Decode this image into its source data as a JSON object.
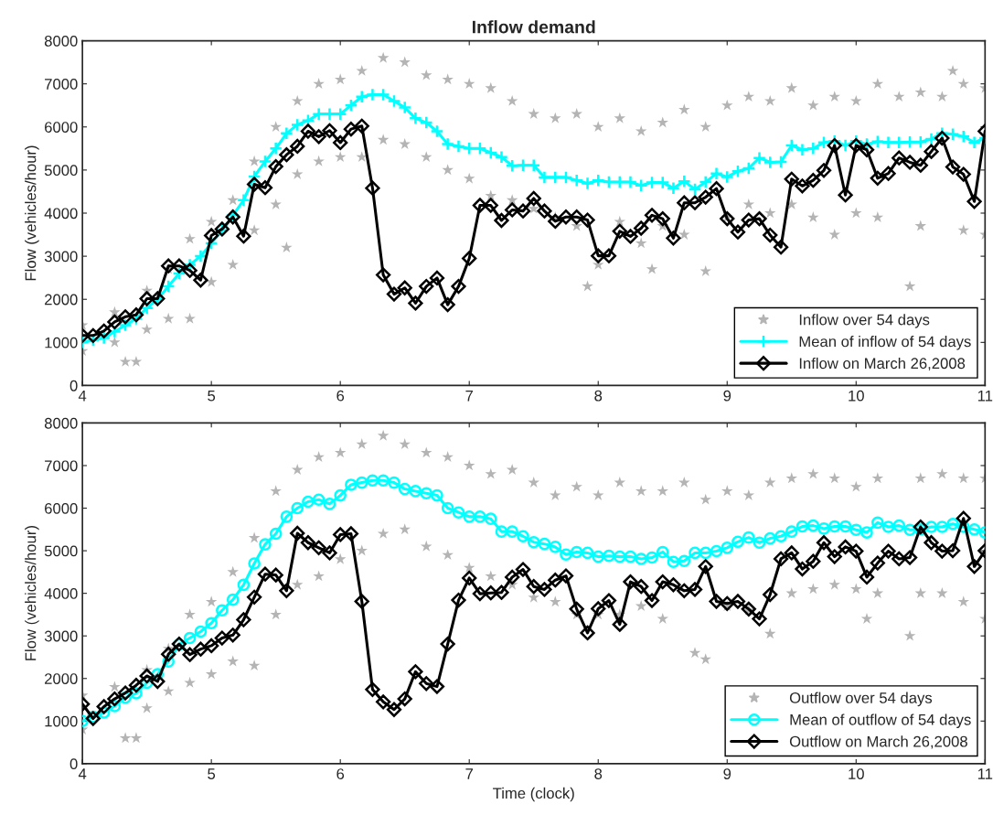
{
  "chart_data": [
    {
      "type": "line",
      "title": "Inflow demand",
      "ylabel": "Flow (vehicles/hour)",
      "xlim": [
        4,
        11
      ],
      "ylim": [
        0,
        8000
      ],
      "xticks": [
        4,
        5,
        6,
        7,
        8,
        9,
        10,
        11
      ],
      "yticks": [
        0,
        1000,
        2000,
        3000,
        4000,
        5000,
        6000,
        7000,
        8000
      ],
      "legend": "bottom right",
      "grid": false,
      "x": [
        4,
        4.083,
        4.167,
        4.25,
        4.333,
        4.417,
        4.5,
        4.583,
        4.667,
        4.75,
        4.833,
        4.917,
        5,
        5.083,
        5.167,
        5.25,
        5.333,
        5.417,
        5.5,
        5.583,
        5.667,
        5.75,
        5.833,
        5.917,
        6,
        6.083,
        6.167,
        6.25,
        6.333,
        6.417,
        6.5,
        6.583,
        6.667,
        6.75,
        6.833,
        6.917,
        7,
        7.083,
        7.167,
        7.25,
        7.333,
        7.417,
        7.5,
        7.583,
        7.667,
        7.75,
        7.833,
        7.917,
        8,
        8.083,
        8.167,
        8.25,
        8.333,
        8.417,
        8.5,
        8.583,
        8.667,
        8.75,
        8.833,
        8.917,
        9,
        9.083,
        9.167,
        9.25,
        9.333,
        9.417,
        9.5,
        9.583,
        9.667,
        9.75,
        9.833,
        9.917,
        10,
        10.083,
        10.167,
        10.25,
        10.333,
        10.417,
        10.5,
        10.583,
        10.667,
        10.75,
        10.833,
        10.917,
        11
      ],
      "series": [
        {
          "name": "Inflow over 54 days",
          "type": "scatter",
          "marker": "star",
          "color": "#b4b4b4",
          "x": [
            4,
            4,
            4.25,
            4.25,
            4.333,
            4.417,
            4.5,
            4.5,
            4.667,
            4.667,
            4.833,
            4.833,
            5,
            5,
            5.167,
            5.167,
            5.333,
            5.333,
            5.5,
            5.5,
            5.583,
            5.667,
            5.667,
            5.833,
            5.833,
            6,
            6,
            6.167,
            6.167,
            6.333,
            6.333,
            6.5,
            6.5,
            6.667,
            6.667,
            6.833,
            6.833,
            7,
            7,
            7.167,
            7.167,
            7.333,
            7.333,
            7.5,
            7.5,
            7.667,
            7.667,
            7.833,
            7.833,
            7.917,
            8,
            8,
            8.167,
            8.167,
            8.333,
            8.333,
            8.417,
            8.5,
            8.5,
            8.667,
            8.667,
            8.833,
            8.833,
            9,
            9,
            9.167,
            9.167,
            9.333,
            9.333,
            9.5,
            9.5,
            9.667,
            9.667,
            9.833,
            9.833,
            10,
            10,
            10.167,
            10.167,
            10.333,
            10.417,
            10.5,
            10.5,
            10.667,
            10.75,
            10.833,
            10.833,
            11,
            11
          ],
          "values": [
            1400,
            800,
            1700,
            1000,
            550,
            550,
            2200,
            1300,
            2700,
            1550,
            3400,
            1550,
            3800,
            2400,
            4300,
            2800,
            5200,
            3600,
            6000,
            4200,
            3200,
            6600,
            4900,
            7000,
            5200,
            7100,
            5300,
            7300,
            5300,
            7600,
            5700,
            7500,
            5600,
            7200,
            5300,
            7100,
            5000,
            7000,
            4800,
            6900,
            4400,
            6600,
            4300,
            6300,
            4100,
            6200,
            3900,
            6300,
            3700,
            2300,
            6000,
            2800,
            6200,
            3800,
            5900,
            3300,
            2700,
            6100,
            3700,
            6400,
            3500,
            6000,
            2650,
            6500,
            3900,
            6700,
            4200,
            6600,
            4000,
            6900,
            4200,
            6500,
            3900,
            6700,
            3500,
            6600,
            4000,
            7000,
            3900,
            6700,
            2300,
            6800,
            3700,
            6700,
            7300,
            7000,
            3600,
            6900,
            3500
          ]
        },
        {
          "name": "Mean of inflow of 54 days",
          "marker": "cross",
          "color": "#00ffff",
          "values": [
            1000,
            1050,
            1100,
            1250,
            1400,
            1550,
            1800,
            2000,
            2300,
            2600,
            2800,
            3000,
            3300,
            3600,
            3950,
            4300,
            4850,
            5200,
            5500,
            5850,
            6050,
            6150,
            6300,
            6300,
            6300,
            6500,
            6700,
            6750,
            6750,
            6600,
            6450,
            6200,
            6100,
            5900,
            5600,
            5550,
            5500,
            5500,
            5400,
            5300,
            5100,
            5110,
            5110,
            4830,
            4830,
            4830,
            4760,
            4690,
            4760,
            4720,
            4720,
            4720,
            4640,
            4710,
            4710,
            4580,
            4740,
            4550,
            4720,
            4920,
            4840,
            4970,
            5040,
            5280,
            5180,
            5190,
            5570,
            5470,
            5500,
            5640,
            5670,
            5570,
            5670,
            5600,
            5660,
            5640,
            5640,
            5650,
            5650,
            5720,
            5850,
            5830,
            5780,
            5640,
            5740
          ]
        },
        {
          "name": "Inflow on March 26,2008",
          "marker": "diamond",
          "color": "#000000",
          "values": [
            1160,
            1160,
            1265,
            1475,
            1595,
            1640,
            2015,
            2015,
            2775,
            2775,
            2670,
            2445,
            3480,
            3630,
            3910,
            3465,
            4670,
            4590,
            5080,
            5355,
            5550,
            5900,
            5775,
            5915,
            5635,
            5950,
            6020,
            4580,
            2565,
            2120,
            2265,
            1910,
            2300,
            2495,
            1875,
            2300,
            2950,
            4180,
            4180,
            3830,
            4075,
            4050,
            4340,
            4050,
            3810,
            3910,
            3910,
            3840,
            3010,
            3010,
            3580,
            3460,
            3650,
            3950,
            3870,
            3420,
            4240,
            4240,
            4370,
            4570,
            3870,
            3560,
            3840,
            3870,
            3490,
            3210,
            4790,
            4630,
            4760,
            4990,
            5570,
            4420,
            5570,
            5470,
            4810,
            4920,
            5280,
            5180,
            5110,
            5430,
            5740,
            5070,
            4900,
            4270,
            5900
          ]
        }
      ]
    },
    {
      "type": "line",
      "xlabel": "Time (clock)",
      "ylabel": "Flow (vehicles/hour)",
      "xlim": [
        4,
        11
      ],
      "ylim": [
        0,
        8000
      ],
      "xticks": [
        4,
        5,
        6,
        7,
        8,
        9,
        10,
        11
      ],
      "yticks": [
        0,
        1000,
        2000,
        3000,
        4000,
        5000,
        6000,
        7000,
        8000
      ],
      "legend": "bottom right",
      "grid": false,
      "x": [
        4,
        4.083,
        4.167,
        4.25,
        4.333,
        4.417,
        4.5,
        4.583,
        4.667,
        4.75,
        4.833,
        4.917,
        5,
        5.083,
        5.167,
        5.25,
        5.333,
        5.417,
        5.5,
        5.583,
        5.667,
        5.75,
        5.833,
        5.917,
        6,
        6.083,
        6.167,
        6.25,
        6.333,
        6.417,
        6.5,
        6.583,
        6.667,
        6.75,
        6.833,
        6.917,
        7,
        7.083,
        7.167,
        7.25,
        7.333,
        7.417,
        7.5,
        7.583,
        7.667,
        7.75,
        7.833,
        7.917,
        8,
        8.083,
        8.167,
        8.25,
        8.333,
        8.417,
        8.5,
        8.583,
        8.667,
        8.75,
        8.833,
        8.917,
        9,
        9.083,
        9.167,
        9.25,
        9.333,
        9.417,
        9.5,
        9.583,
        9.667,
        9.75,
        9.833,
        9.917,
        10,
        10.083,
        10.167,
        10.25,
        10.333,
        10.417,
        10.5,
        10.583,
        10.667,
        10.75,
        10.833,
        10.917,
        11
      ],
      "series": [
        {
          "name": "Outflow over 54 days",
          "type": "scatter",
          "marker": "star",
          "color": "#b4b4b4",
          "x": [
            4,
            4,
            4.25,
            4.333,
            4.417,
            4.5,
            4.5,
            4.667,
            4.667,
            4.833,
            4.833,
            5,
            5,
            5.167,
            5.167,
            5.333,
            5.333,
            5.5,
            5.5,
            5.667,
            5.667,
            5.833,
            5.833,
            6,
            6,
            6.167,
            6.167,
            6.333,
            6.333,
            6.5,
            6.5,
            6.667,
            6.667,
            6.833,
            6.833,
            7,
            7,
            7.167,
            7.167,
            7.333,
            7.333,
            7.5,
            7.5,
            7.667,
            7.667,
            7.833,
            7.833,
            8,
            8,
            8.167,
            8.167,
            8.333,
            8.333,
            8.5,
            8.5,
            8.667,
            8.75,
            8.833,
            8.833,
            9,
            9,
            9.167,
            9.167,
            9.333,
            9.333,
            9.5,
            9.5,
            9.667,
            9.667,
            9.833,
            9.833,
            10,
            10,
            10.083,
            10.167,
            10.167,
            10.417,
            10.5,
            10.5,
            10.667,
            10.667,
            10.833,
            10.833,
            11,
            11
          ],
          "values": [
            1600,
            800,
            1800,
            600,
            600,
            2200,
            1300,
            2700,
            1700,
            3500,
            1900,
            3800,
            2100,
            4500,
            2400,
            5300,
            2300,
            6400,
            3500,
            6900,
            4200,
            7200,
            4400,
            7300,
            4800,
            7500,
            5000,
            7700,
            5400,
            7500,
            5500,
            7300,
            5100,
            7200,
            4900,
            7000,
            4600,
            6800,
            4400,
            6900,
            4200,
            6600,
            3900,
            6300,
            3800,
            6500,
            3500,
            6300,
            3500,
            6600,
            3500,
            6400,
            3700,
            6400,
            3400,
            6600,
            2600,
            6200,
            2450,
            6400,
            3700,
            6300,
            3600,
            6600,
            3050,
            6700,
            4000,
            6800,
            4100,
            6700,
            4200,
            6500,
            4100,
            3400,
            6700,
            4000,
            3000,
            6700,
            4000,
            6800,
            4000,
            6700,
            3800,
            6700,
            3400
          ]
        },
        {
          "name": "Mean of outflow of 54 days",
          "marker": "circle",
          "color": "#00ffff",
          "values": [
            1000,
            1100,
            1200,
            1350,
            1550,
            1650,
            1900,
            2100,
            2400,
            2800,
            2950,
            3100,
            3300,
            3600,
            3850,
            4200,
            4700,
            5150,
            5400,
            5800,
            6000,
            6150,
            6200,
            6100,
            6300,
            6550,
            6600,
            6650,
            6650,
            6600,
            6450,
            6400,
            6350,
            6300,
            6000,
            5900,
            5800,
            5800,
            5750,
            5450,
            5450,
            5340,
            5200,
            5160,
            5090,
            4910,
            4970,
            4950,
            4860,
            4880,
            4860,
            4860,
            4810,
            4840,
            4970,
            4740,
            4760,
            4950,
            4950,
            4990,
            5070,
            5210,
            5310,
            5190,
            5290,
            5340,
            5450,
            5570,
            5590,
            5520,
            5570,
            5570,
            5490,
            5430,
            5660,
            5560,
            5590,
            5490,
            5500,
            5560,
            5560,
            5630,
            5560,
            5500,
            5430
          ]
        },
        {
          "name": "Outflow on March 26,2008",
          "marker": "diamond",
          "color": "#000000",
          "values": [
            1400,
            1060,
            1340,
            1520,
            1660,
            1840,
            2060,
            1930,
            2570,
            2810,
            2560,
            2690,
            2770,
            2950,
            3020,
            3380,
            3910,
            4450,
            4430,
            4060,
            5410,
            5190,
            5070,
            4950,
            5380,
            5400,
            3810,
            1740,
            1450,
            1270,
            1520,
            2160,
            1880,
            1810,
            2810,
            3840,
            4360,
            3990,
            4010,
            4020,
            4380,
            4560,
            4160,
            4090,
            4310,
            4410,
            3630,
            3070,
            3640,
            3830,
            3270,
            4270,
            4160,
            3830,
            4270,
            4200,
            4060,
            4090,
            4630,
            3810,
            3760,
            3810,
            3630,
            3400,
            3970,
            4810,
            4950,
            4570,
            4750,
            5190,
            4860,
            5090,
            4990,
            4380,
            4710,
            4990,
            4810,
            4840,
            5560,
            5190,
            4990,
            5000,
            5760,
            4630,
            5000
          ]
        }
      ]
    }
  ]
}
